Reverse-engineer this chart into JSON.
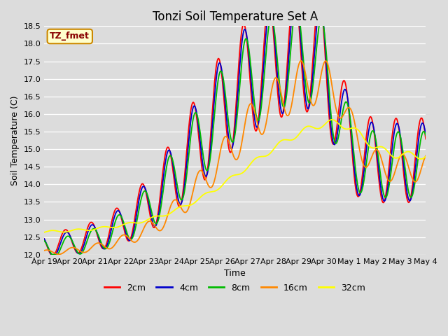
{
  "title": "Tonzi Soil Temperature Set A",
  "xlabel": "Time",
  "ylabel": "Soil Temperature (C)",
  "ylim": [
    12.0,
    18.5
  ],
  "bg_color": "#dcdcdc",
  "legend_labels": [
    "2cm",
    "4cm",
    "8cm",
    "16cm",
    "32cm"
  ],
  "legend_colors": [
    "#ff0000",
    "#0000cc",
    "#00bb00",
    "#ff8800",
    "#ffff00"
  ],
  "xtick_labels": [
    "Apr 19",
    "Apr 20",
    "Apr 21",
    "Apr 22",
    "Apr 23",
    "Apr 24",
    "Apr 25",
    "Apr 26",
    "Apr 27",
    "Apr 28",
    "Apr 29",
    "Apr 30",
    "May 1",
    "May 2",
    "May 3",
    "May 4"
  ],
  "annotation_text": "TZ_fmet",
  "annotation_bg": "#ffffcc",
  "annotation_border": "#cc8800",
  "line_width": 1.3,
  "title_fontsize": 12,
  "label_fontsize": 9,
  "tick_fontsize": 8
}
